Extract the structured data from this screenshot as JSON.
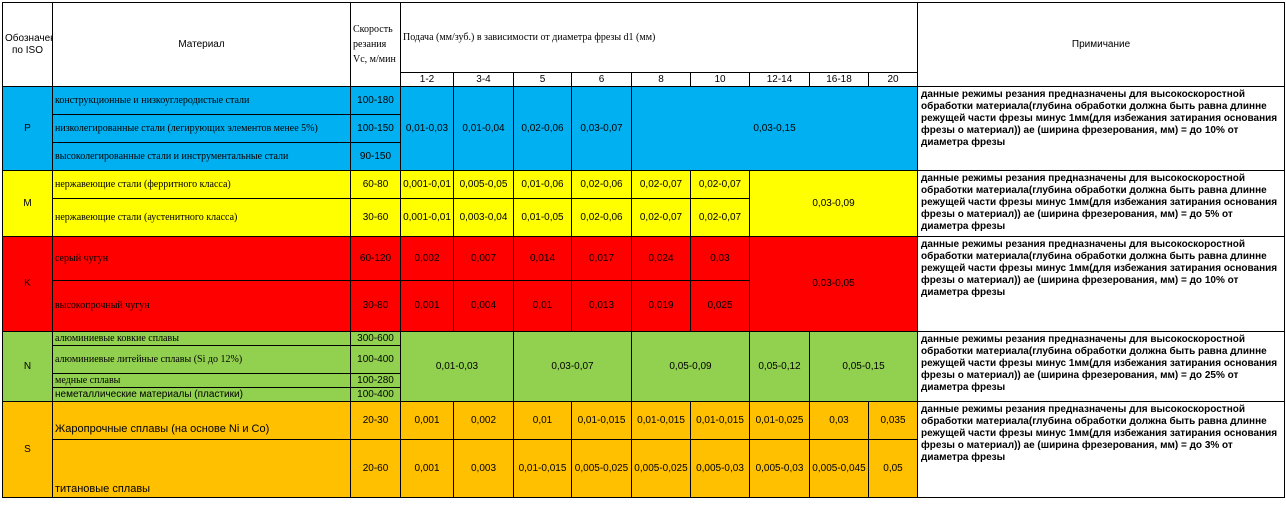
{
  "header": {
    "iso": "Обозначение по ISO",
    "material": "Материал",
    "speed": "Скорость резания Vc, м/мин",
    "feed": "Подача (мм/зуб.) в зависимости от диаметра фрезы d1 (мм)",
    "note": "Примичание",
    "diameters": [
      "1-2",
      "3-4",
      "5",
      "6",
      "8",
      "10",
      "12-14",
      "16-18",
      "20"
    ]
  },
  "colors": {
    "P": "#00b0f0",
    "M": "#ffff00",
    "K": "#ff0000",
    "N": "#92d050",
    "S": "#ffc000"
  },
  "groups": {
    "P": {
      "iso": "P",
      "rows": [
        {
          "material": "конструкционные и низкоуглеродистые стали",
          "speed": "100-180"
        },
        {
          "material": "низколегированные стали (легирующих элементов менее 5%)",
          "speed": "100-150"
        },
        {
          "material": "высоколегированные стали и инструментальные стали",
          "speed": "90-150"
        }
      ],
      "feeds": [
        "0,01-0,03",
        "0,01-0,04",
        "0,02-0,06",
        "0,03-0,07",
        "0,03-0,15"
      ],
      "note": "данные режимы резания предназначены для высокоскоростной обработки материала(глубина обработки должна быть равна длинне режущей части фрезы минус 1мм(для избежания затирания основания фрезы о материал)) ае (ширина фрезерования, мм) = до 10% от диаметра фрезы"
    },
    "M": {
      "iso": "M",
      "rows": [
        {
          "material": "нержавеющие стали (ферритного класса)",
          "speed": "60-80",
          "feeds": [
            "0,001-0,01",
            "0,005-0,05",
            "0,01-0,06",
            "0,02-0,06",
            "0,02-0,07",
            "0,02-0,07"
          ]
        },
        {
          "material": "нержавеющие стали (аустенитного класса)",
          "speed": "30-60",
          "feeds": [
            "0,001-0,01",
            "0,003-0,04",
            "0,01-0,05",
            "0,02-0,06",
            "0,02-0,07",
            "0,02-0,07"
          ]
        }
      ],
      "feed_large": "0,03-0,09",
      "note": "данные режимы резания предназначены для высокоскоростной обработки материала(глубина обработки должна быть равна длинне режущей части фрезы минус 1мм(для избежания затирания основания фрезы о материал)) ае (ширина фрезерования, мм) = до 5% от диаметра фрезы"
    },
    "K": {
      "iso": "K",
      "rows": [
        {
          "material": "серый чугун",
          "speed": "60-120",
          "feeds": [
            "0,002",
            "0,007",
            "0,014",
            "0,017",
            "0,024",
            "0,03"
          ]
        },
        {
          "material": "высокопрочный чугун",
          "speed": "30-80",
          "feeds": [
            "0,001",
            "0,004",
            "0,01",
            "0,013",
            "0,019",
            "0,025"
          ]
        }
      ],
      "feed_large": "0,03-0,05",
      "note": "данные режимы резания предназначены для высокоскоростной обработки материала(глубина обработки должна быть равна длинне режущей части фрезы минус 1мм(для избежания затирания основания фрезы о материал)) ае (ширина фрезерования, мм) = до 10% от диаметра фрезы"
    },
    "N": {
      "iso": "N",
      "rows": [
        {
          "material": "алюминиевые ковкие сплавы",
          "speed": "300-600"
        },
        {
          "material": "алюминиевые литейные сплавы (Si до 12%)",
          "speed": "100-400"
        },
        {
          "material": "медные сплавы",
          "speed": "100-280"
        },
        {
          "material": "неметаллические материалы (пластики)",
          "speed": "100-400"
        }
      ],
      "feeds": [
        "0,01-0,03",
        "0,03-0,07",
        "0,05-0,09",
        "0,05-0,12",
        "0,05-0,15"
      ],
      "note": "данные режимы резания предназначены для высокоскоростной обработки материала(глубина обработки должна быть равна длинне режущей части фрезы минус 1мм(для избежания затирания основания фрезы о материал)) ае (ширина фрезерования, мм) = до 25% от диаметра фрезы"
    },
    "S": {
      "iso": "S",
      "rows": [
        {
          "material": "Жаропрочные сплавы (на основе Ni и Co)",
          "speed": "20-30",
          "feeds": [
            "0,001",
            "0,002",
            "0,01",
            "0,01-0,015",
            "0,01-0,015",
            "0,01-0,015",
            "0,01-0,025",
            "0,03",
            "0,035"
          ]
        },
        {
          "material": "титановые сплавы",
          "speed": "20-60",
          "feeds": [
            "0,001",
            "0,003",
            "0,01-0,015",
            "0,005-0,025",
            "0,005-0,025",
            "0,005-0,03",
            "0,005-0,03",
            "0,005-0,045",
            "0,05"
          ]
        }
      ],
      "note": "данные режимы резания предназначены для высокоскоростной обработки материала(глубина обработки должна быть равна длинне режущей части фрезы минус 1мм(для избежания затирания основания фрезы о материал)) ае (ширина фрезерования, мм) = до 3% от диаметра фрезы"
    }
  }
}
